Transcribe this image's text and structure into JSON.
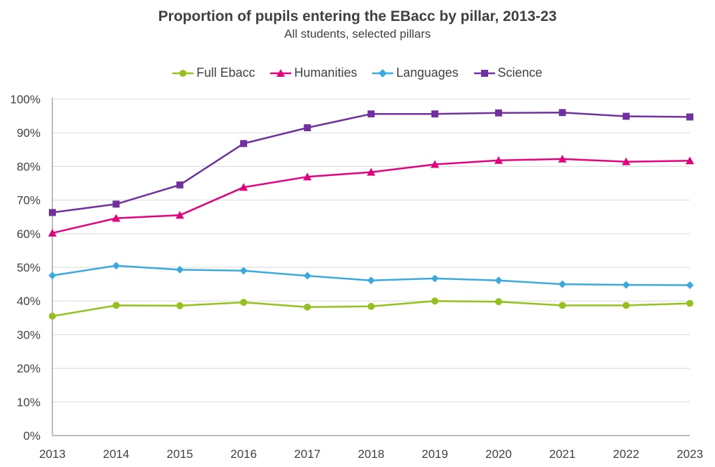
{
  "chart_data": {
    "type": "line",
    "title": "Proportion of pupils entering the EBacc by pillar, 2013-23",
    "subtitle": "All students, selected pillars",
    "x": [
      "2013",
      "2014",
      "2015",
      "2016",
      "2017",
      "2018",
      "2019",
      "2020",
      "2021",
      "2022",
      "2023"
    ],
    "y_ticks": [
      "0%",
      "10%",
      "20%",
      "30%",
      "40%",
      "50%",
      "60%",
      "70%",
      "80%",
      "90%",
      "100%"
    ],
    "ylim": [
      0,
      100
    ],
    "grid": true,
    "legend_position": "top",
    "series": [
      {
        "name": "Full Ebacc",
        "color": "#95c11f",
        "marker": "circle",
        "values": [
          35.5,
          38.7,
          38.6,
          39.6,
          38.2,
          38.4,
          40.0,
          39.8,
          38.7,
          38.7,
          39.3
        ]
      },
      {
        "name": "Humanities",
        "color": "#e5007e",
        "marker": "triangle",
        "values": [
          60.2,
          64.6,
          65.5,
          73.8,
          76.9,
          78.3,
          80.6,
          81.8,
          82.2,
          81.4,
          81.7
        ]
      },
      {
        "name": "Languages",
        "color": "#3aa9e0",
        "marker": "diamond",
        "values": [
          47.6,
          50.5,
          49.3,
          49.0,
          47.5,
          46.1,
          46.7,
          46.1,
          45.0,
          44.8,
          44.7
        ]
      },
      {
        "name": "Science",
        "color": "#7030a0",
        "marker": "square",
        "values": [
          66.3,
          68.8,
          74.5,
          86.8,
          91.5,
          95.6,
          95.6,
          95.9,
          96.0,
          94.9,
          94.7
        ]
      }
    ]
  }
}
